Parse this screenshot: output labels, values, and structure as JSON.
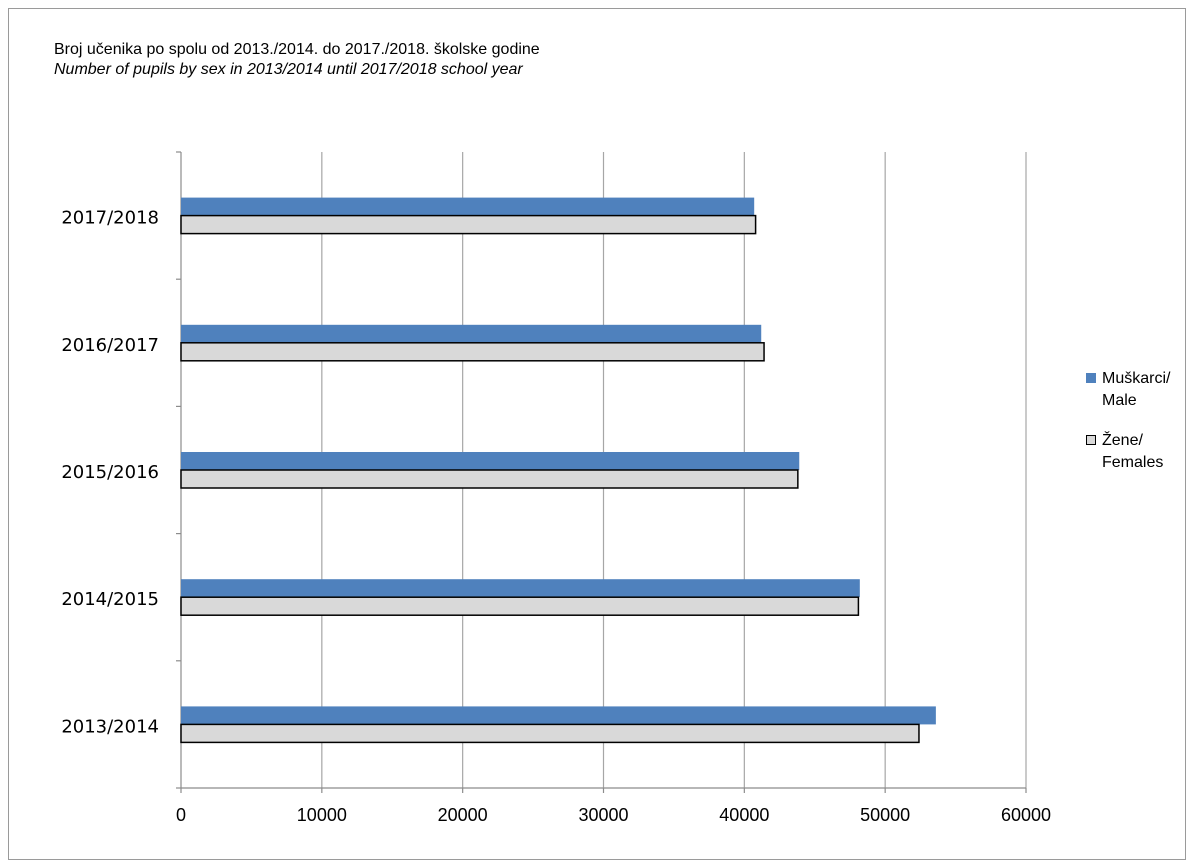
{
  "chart_data": {
    "type": "bar",
    "orientation": "horizontal",
    "title": "Broj učenika po spolu od 2013./2014. do 2017./2018. školske godine",
    "subtitle": "Number of pupils by sex in 2013/2014 until 2017/2018 school year",
    "categories": [
      "2013/2014",
      "2014/2015",
      "2015/2016",
      "2016/2017",
      "2017/2018"
    ],
    "series": [
      {
        "name": "Muškarci/ Male",
        "name_line1": "Muškarci/",
        "name_line2": "Male",
        "color": "#4f81bd",
        "values": [
          53600,
          48200,
          43900,
          41200,
          40700
        ]
      },
      {
        "name": "Žene/ Females",
        "name_line1": "Žene/",
        "name_line2": "Females",
        "color": "#d9d9d9",
        "values": [
          52400,
          48100,
          43800,
          41400,
          40800
        ]
      }
    ],
    "xlim": [
      0,
      60000
    ],
    "xticks": [
      0,
      10000,
      20000,
      30000,
      40000,
      50000,
      60000
    ],
    "grid": true,
    "legend_position": "right"
  }
}
